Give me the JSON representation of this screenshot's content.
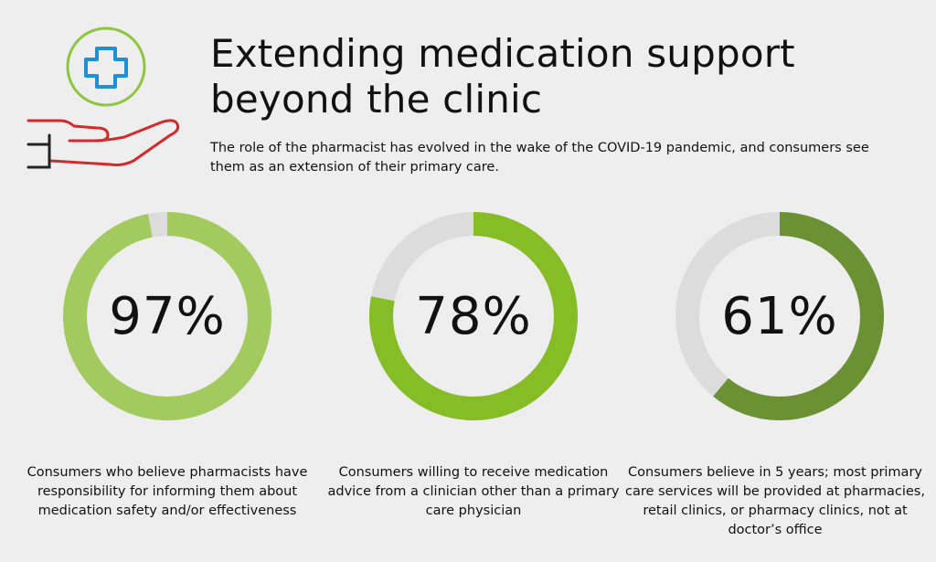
{
  "header": {
    "title": "Extending medication support beyond the clinic",
    "subtitle": "The role of the pharmacist has evolved in the wake of the COVID-19 pandemic, and consumers see them as an extension of their primary care."
  },
  "icon": {
    "name": "hand-holding-medical-cross-icon",
    "colors": {
      "circle": "#8dc63f",
      "cross": "#1f8fd6",
      "hand": "#d42a2a",
      "cuff": "#222222"
    }
  },
  "chart_data": [
    {
      "type": "pie",
      "style": "donut",
      "value": 97,
      "label": "97%",
      "color": "#a1cb5f",
      "track_color": "#dcdcdc",
      "caption": "Consumers who believe pharmacists have responsibility for informing them about medication safety and/or effectiveness"
    },
    {
      "type": "pie",
      "style": "donut",
      "value": 78,
      "label": "78%",
      "color": "#86bc25",
      "track_color": "#dcdcdc",
      "caption": "Consumers willing to receive medication advice from a clinician other than a primary care physician"
    },
    {
      "type": "pie",
      "style": "donut",
      "value": 61,
      "label": "61%",
      "color": "#6a9133",
      "track_color": "#dcdcdc",
      "caption": "Consumers believe in 5 years; most primary care services will be provided at pharmacies, retail clinics, or pharmacy clinics, not at doctor’s office"
    }
  ]
}
